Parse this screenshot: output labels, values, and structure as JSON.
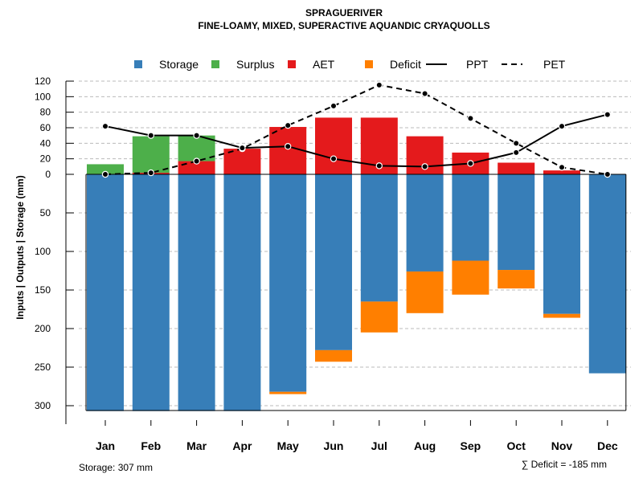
{
  "chart_data": {
    "type": "bar",
    "title": "SPRAGUERIVER",
    "subtitle": "FINE-LOAMY, MIXED, SUPERACTIVE AQUANDIC CRYAQUOLLS",
    "ylabel": "Inputs | Outputs | Storage    (mm)",
    "xlabel": "",
    "categories": [
      "Jan",
      "Feb",
      "Mar",
      "Apr",
      "May",
      "Jun",
      "Jul",
      "Aug",
      "Sep",
      "Oct",
      "Nov",
      "Dec"
    ],
    "upper_ylim": [
      0,
      120
    ],
    "upper_ticks": [
      "0",
      "20",
      "40",
      "60",
      "80",
      "100",
      "120"
    ],
    "lower_ylim": [
      0,
      300
    ],
    "lower_ticks": [
      "0",
      "50",
      "100",
      "150",
      "200",
      "250",
      "300"
    ],
    "grid": true,
    "legend_position": "top",
    "legend": [
      {
        "label": "Storage",
        "kind": "square",
        "color": "#377EB8"
      },
      {
        "label": "Surplus",
        "kind": "square",
        "color": "#4DAF4A"
      },
      {
        "label": "AET",
        "kind": "square",
        "color": "#E41A1C"
      },
      {
        "label": "Deficit",
        "kind": "square",
        "color": "#FF7F00"
      },
      {
        "label": "PPT",
        "kind": "line-solid",
        "color": "#000000"
      },
      {
        "label": "PET",
        "kind": "line-dashed",
        "color": "#000000"
      }
    ],
    "series": [
      {
        "name": "AET",
        "values": [
          0,
          2,
          17,
          33,
          61,
          73,
          73,
          49,
          28,
          15,
          5,
          0
        ],
        "color": "#E41A1C"
      },
      {
        "name": "Surplus",
        "values": [
          13,
          47,
          33,
          0,
          0,
          0,
          0,
          0,
          0,
          0,
          0,
          0
        ],
        "color": "#4DAF4A"
      },
      {
        "name": "Storage",
        "values": [
          307,
          307,
          307,
          307,
          282,
          228,
          165,
          126,
          112,
          124,
          181,
          258
        ],
        "color": "#377EB8"
      },
      {
        "name": "Deficit",
        "values": [
          0,
          0,
          0,
          0,
          3,
          15,
          40,
          54,
          44,
          24,
          5,
          0
        ],
        "color": "#FF7F00"
      },
      {
        "name": "PPT",
        "values": [
          62,
          50,
          50,
          34,
          36,
          20,
          11,
          10,
          14,
          28,
          62,
          77
        ],
        "color": "#000000"
      },
      {
        "name": "PET",
        "values": [
          0,
          2,
          17,
          33,
          63,
          88,
          115,
          104,
          72,
          40,
          9,
          0
        ],
        "color": "#000000"
      }
    ],
    "storage_note": "Storage: 307 mm",
    "deficit_note": "∑ Deficit = -185 mm"
  }
}
